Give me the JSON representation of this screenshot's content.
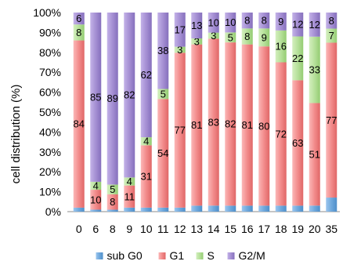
{
  "chart_data": {
    "type": "bar",
    "stacked": true,
    "percent": true,
    "title": "",
    "xlabel": "",
    "ylabel": "cell distribution (%)",
    "ylim": [
      0,
      100
    ],
    "yticks": [
      "0%",
      "10%",
      "20%",
      "30%",
      "40%",
      "50%",
      "60%",
      "70%",
      "80%",
      "90%",
      "100%"
    ],
    "grid": false,
    "legend_position": "bottom",
    "categories": [
      "0",
      "6",
      "8",
      "9",
      "10",
      "11",
      "12",
      "13",
      "14",
      "15",
      "16",
      "17",
      "18",
      "19",
      "20",
      "35"
    ],
    "series": [
      {
        "name": "sub G0",
        "color": "#6fa8dc",
        "values": [
          2,
          1,
          1,
          2,
          2,
          2,
          2,
          3,
          3,
          3,
          3,
          3,
          3,
          3,
          3,
          7
        ],
        "labels": [
          "",
          "",
          "",
          "",
          "",
          "",
          "",
          "",
          "",
          "",
          "",
          "",
          "",
          "",
          "",
          ""
        ]
      },
      {
        "name": "G1",
        "color": "#f28b8b",
        "values": [
          84,
          10,
          8,
          11,
          31,
          54,
          77,
          81,
          83,
          82,
          81,
          80,
          72,
          63,
          51,
          77
        ],
        "labels": [
          "84",
          "10",
          "8",
          "11",
          "31",
          "54",
          "77",
          "81",
          "83",
          "82",
          "81",
          "80",
          "72",
          "63",
          "51",
          "77"
        ]
      },
      {
        "name": "S",
        "color": "#b6e09a",
        "values": [
          8,
          4,
          5,
          4,
          4,
          5,
          3,
          3,
          3,
          5,
          8,
          9,
          16,
          22,
          33,
          7
        ],
        "labels": [
          "8",
          "4",
          "5",
          "4",
          "4",
          "5",
          "3",
          "3",
          "3",
          "5",
          "8",
          "9",
          "16",
          "22",
          "33",
          "7"
        ]
      },
      {
        "name": "G2/M",
        "color": "#a58fd3",
        "values": [
          6,
          85,
          89,
          82,
          62,
          38,
          17,
          13,
          10,
          10,
          8,
          8,
          9,
          12,
          12,
          8
        ],
        "labels": [
          "6",
          "85",
          "89",
          "82",
          "62",
          "38",
          "17",
          "13",
          "10",
          "10",
          "8",
          "8",
          "9",
          "12",
          "12",
          "8"
        ]
      }
    ]
  }
}
